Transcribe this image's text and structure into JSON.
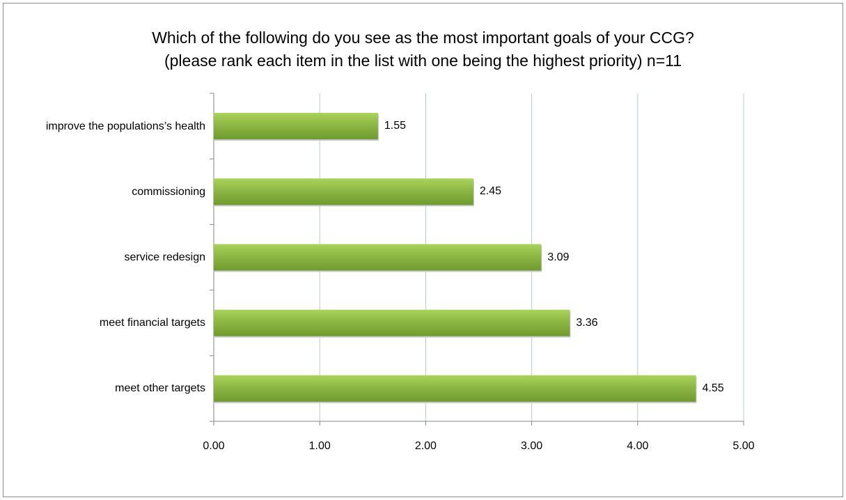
{
  "chart_data": {
    "type": "bar",
    "orientation": "horizontal",
    "title": [
      "Which of the following do you see as the most important goals of your CCG?",
      "(please rank each item in the list with one being the highest priority) n=11"
    ],
    "categories": [
      "improve the populations’s health",
      "commissioning",
      "service redesign",
      "meet financial targets",
      "meet other targets"
    ],
    "values": [
      1.55,
      2.45,
      3.09,
      3.36,
      4.55
    ],
    "data_labels": [
      "1.55",
      "2.45",
      "3.09",
      "3.36",
      "4.55"
    ],
    "xlim": [
      0,
      5
    ],
    "x_ticks": [
      "0.00",
      "1.00",
      "2.00",
      "3.00",
      "4.00",
      "5.00"
    ],
    "grid": "vertical",
    "legend": "none",
    "bar_color": "#8db845",
    "bar_color_light": "#a9d35a",
    "bar_color_dark": "#6f9a2e",
    "grid_color": "#b9c9d9"
  }
}
